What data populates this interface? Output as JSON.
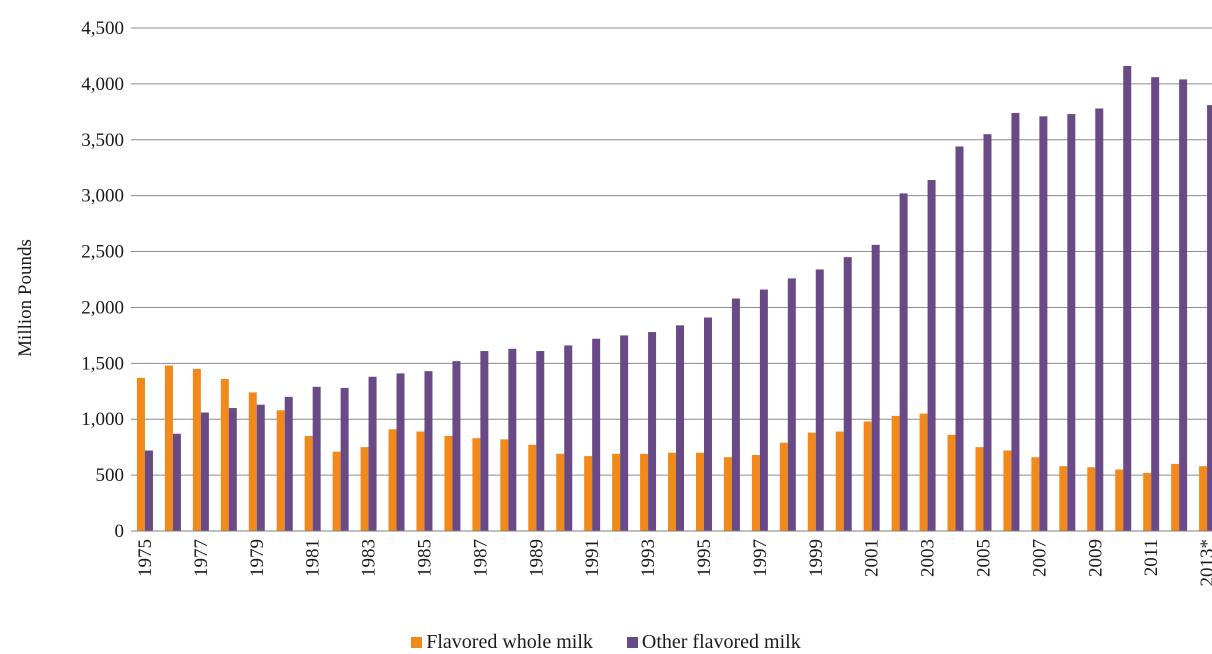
{
  "chart_data": {
    "type": "bar",
    "ylabel": "Million Pounds",
    "ylim": [
      0,
      4500
    ],
    "yticks": [
      0,
      500,
      1000,
      1500,
      2000,
      2500,
      3000,
      3500,
      4000,
      4500
    ],
    "ytick_labels": [
      "0",
      "500",
      "1,000",
      "1,500",
      "2,000",
      "2,500",
      "3,000",
      "3,500",
      "4,000",
      "4,500"
    ],
    "categories": [
      "1975",
      "1976",
      "1977",
      "1978",
      "1979",
      "1980",
      "1981",
      "1982",
      "1983",
      "1984",
      "1985",
      "1986",
      "1987",
      "1988",
      "1989",
      "1990",
      "1991",
      "1992",
      "1993",
      "1994",
      "1995",
      "1996",
      "1997",
      "1998",
      "1999",
      "2000",
      "2001",
      "2002",
      "2003",
      "2004",
      "2005",
      "2006",
      "2007",
      "2008",
      "2009",
      "2010",
      "2011",
      "2012",
      "2013*"
    ],
    "xtick_labels": [
      "1975",
      "",
      "1977",
      "",
      "1979",
      "",
      "1981",
      "",
      "1983",
      "",
      "1985",
      "",
      "1987",
      "",
      "1989",
      "",
      "1991",
      "",
      "1993",
      "",
      "1995",
      "",
      "1997",
      "",
      "1999",
      "",
      "2001",
      "",
      "2003",
      "",
      "2005",
      "",
      "2007",
      "",
      "2009",
      "",
      "2011",
      "",
      "2013*"
    ],
    "series": [
      {
        "name": "Flavored whole milk",
        "color": "#f28a1b",
        "values": [
          1370,
          1480,
          1450,
          1360,
          1240,
          1080,
          850,
          710,
          750,
          910,
          890,
          850,
          830,
          820,
          770,
          690,
          670,
          690,
          690,
          700,
          700,
          660,
          680,
          790,
          880,
          890,
          980,
          1030,
          1050,
          860,
          750,
          720,
          660,
          580,
          570,
          550,
          520,
          600,
          580
        ]
      },
      {
        "name": "Other flavored milk",
        "color": "#6a4a86",
        "values": [
          720,
          870,
          1060,
          1100,
          1130,
          1200,
          1290,
          1280,
          1380,
          1410,
          1430,
          1520,
          1610,
          1630,
          1610,
          1660,
          1720,
          1750,
          1780,
          1840,
          1910,
          2080,
          2160,
          2260,
          2340,
          2450,
          2560,
          3020,
          3140,
          3440,
          3550,
          3740,
          3710,
          3730,
          3780,
          4160,
          4060,
          4040,
          3810
        ]
      }
    ],
    "legend_position": "bottom",
    "grid": true
  }
}
